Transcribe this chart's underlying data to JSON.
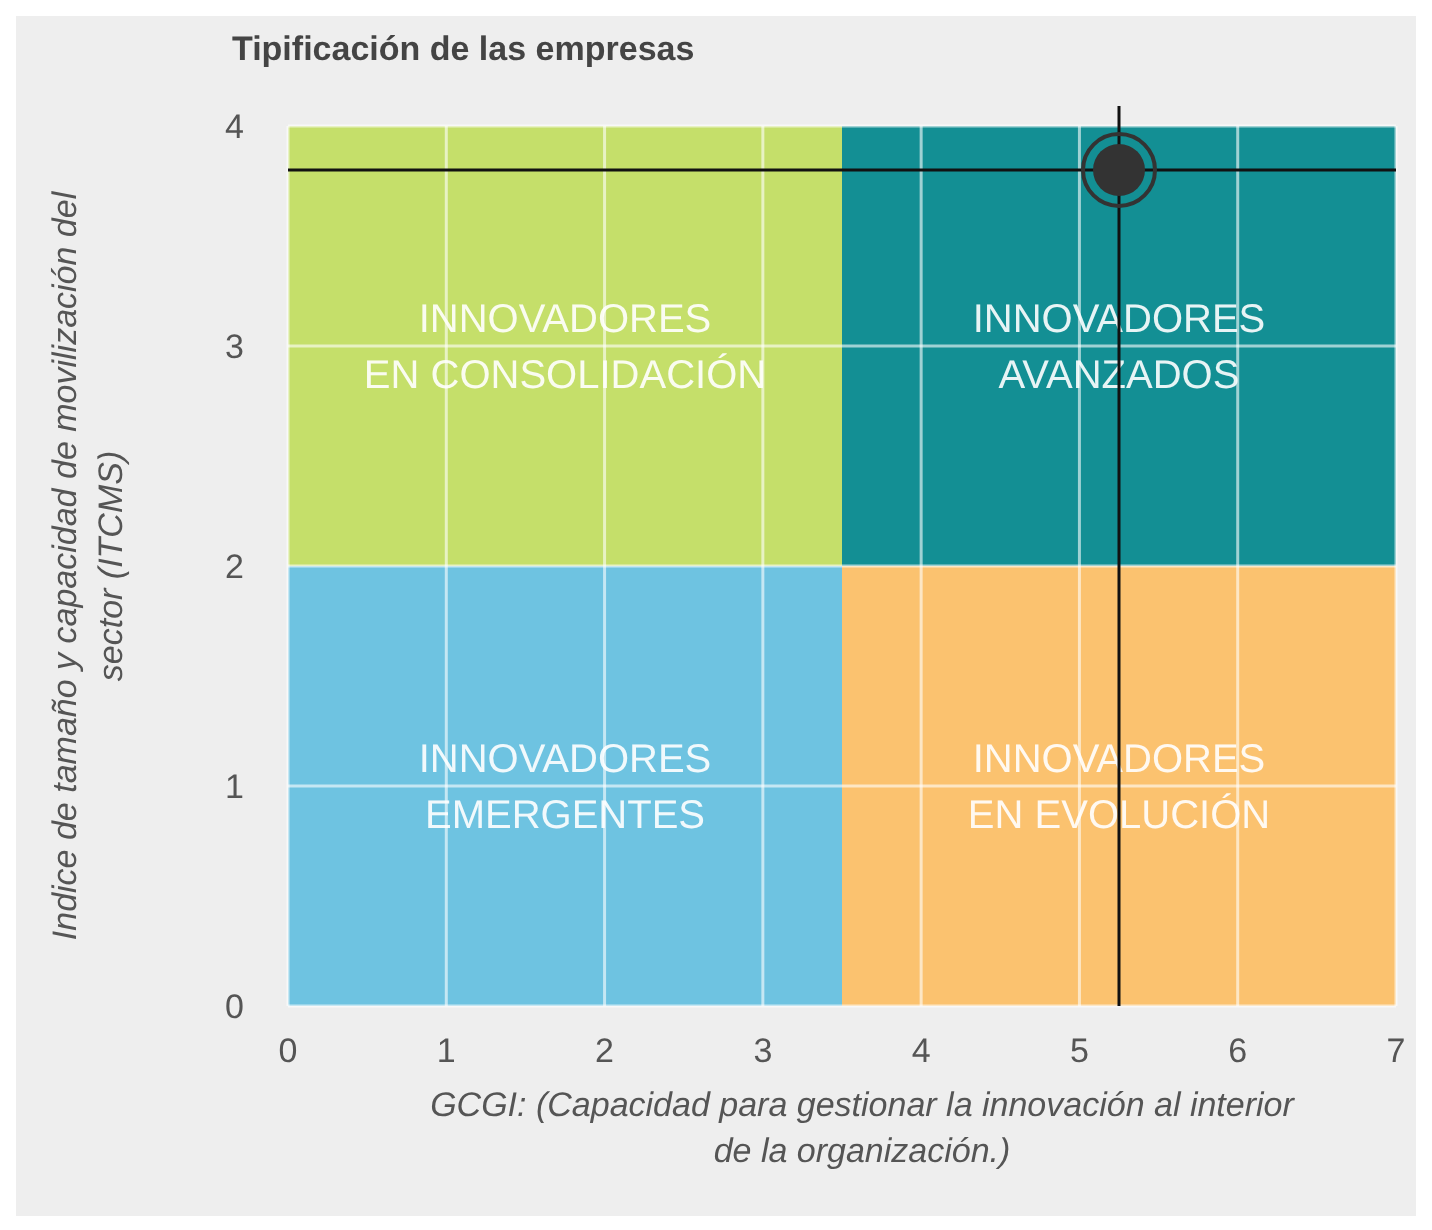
{
  "chart_data": {
    "type": "bar",
    "title": "Tipificación de las empresas",
    "xlabel": "GCGI: (Capacidad para gestionar la innovación al interior\nde la organización.)",
    "ylabel": "Indice de tamaño y capacidad de movilización del\nsector (ITCMS)",
    "x": [
      1.75,
      5.25
    ],
    "stacked": true,
    "series": [
      {
        "colors": [
          "#6ec3e1",
          "#fbc26f"
        ],
        "values": [
          2,
          2
        ]
      },
      {
        "colors": [
          "#c5df6a",
          "#138f94"
        ],
        "values": [
          2,
          2
        ]
      },
      {
        "type": "scatter",
        "x": [
          5.25
        ],
        "color": "#333333",
        "values": [
          3.8
        ]
      }
    ],
    "marker": "circle",
    "xlim": [
      0,
      7
    ],
    "xticks": [
      0,
      1,
      2,
      3,
      4,
      5,
      6,
      7
    ],
    "ylim": [
      0,
      4
    ],
    "yticks": [
      0,
      1,
      2,
      3,
      4
    ],
    "grid": true,
    "ref_lines": [
      {
        "axis": "x",
        "value": 5.25,
        "color": "#111111"
      },
      {
        "axis": "y",
        "value": 3.8,
        "color": "#111111"
      }
    ],
    "annotations": [
      "INNOVADORES\nEN CONSOLIDACIÓN",
      "INNOVADORES\nAVANZADOS",
      "INNOVADORES\nEMERGENTES",
      "INNOVADORES\nEN EVOLUCIÓN"
    ]
  }
}
